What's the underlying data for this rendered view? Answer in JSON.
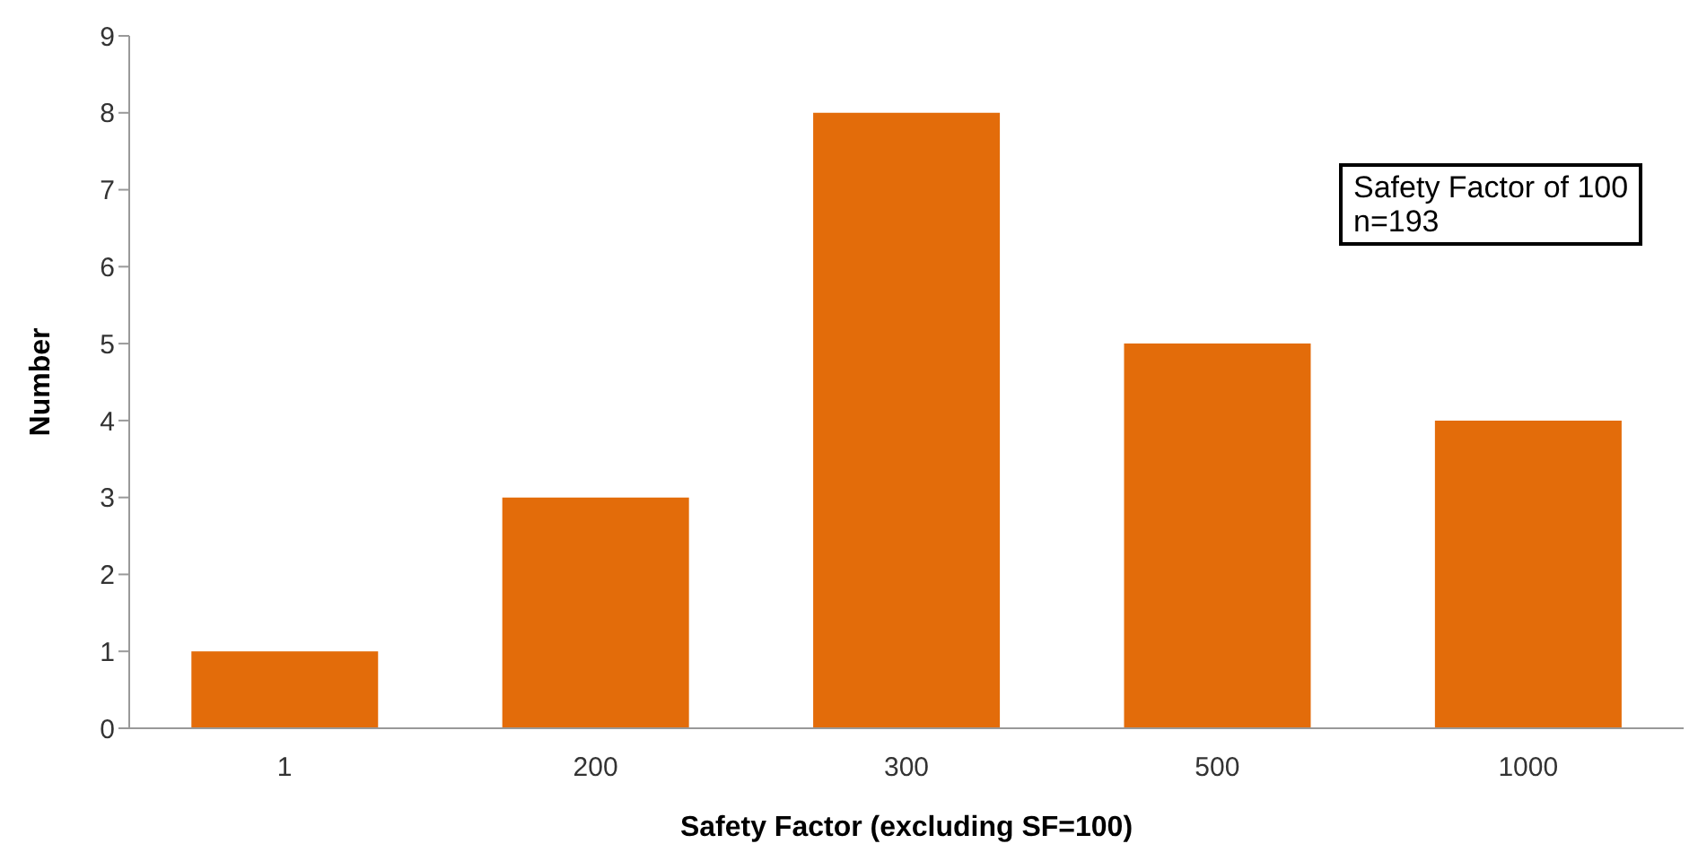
{
  "chart_data": {
    "type": "bar",
    "xlabel": "Safety Factor (excluding SF=100)",
    "ylabel": "Number",
    "categories": [
      "1",
      "200",
      "300",
      "500",
      "1000"
    ],
    "values": [
      1,
      3,
      8,
      5,
      4
    ],
    "color": "#e36c0a",
    "ylim": [
      0,
      9
    ],
    "yticks": [
      0,
      1,
      2,
      3,
      4,
      5,
      6,
      7,
      8,
      9
    ],
    "grid": false,
    "annotations": [
      "Safety Factor of 100",
      "n=193"
    ]
  }
}
